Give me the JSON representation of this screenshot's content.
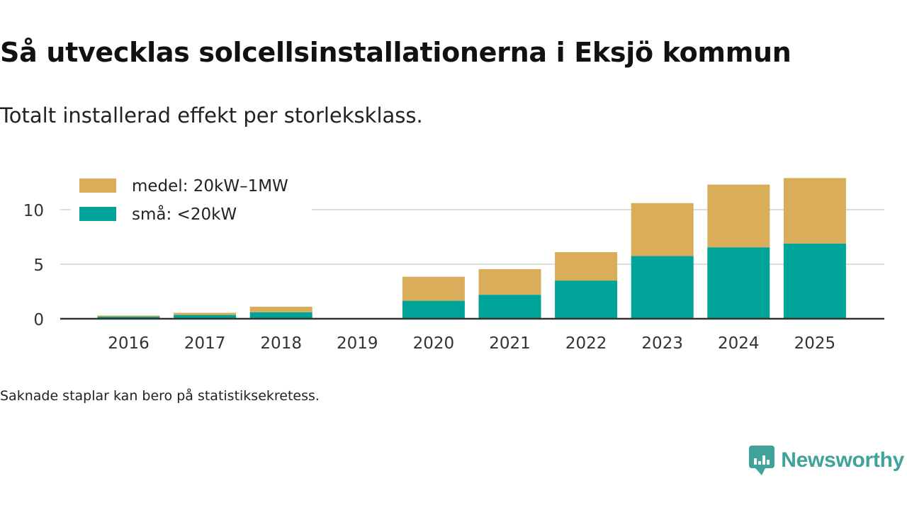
{
  "title": "Så utvecklas solcellsinstallationerna i Eksjö kommun",
  "subtitle": "Totalt installerad effekt per storleksklass.",
  "footnote": "Saknade staplar kan bero på statistiksekretess.",
  "brand": {
    "name": "Newsworthy",
    "icon": "newsworthy-logo-icon",
    "color": "#3fa39a"
  },
  "chart_data": {
    "type": "bar",
    "stacked": true,
    "categories": [
      "2016",
      "2017",
      "2018",
      "2019",
      "2020",
      "2021",
      "2022",
      "2023",
      "2024",
      "2025"
    ],
    "series": [
      {
        "name": "små: <20kW",
        "color": "#00a398",
        "values": [
          0.2,
          0.35,
          0.6,
          null,
          1.65,
          2.2,
          3.5,
          5.75,
          6.55,
          6.9
        ]
      },
      {
        "name": "medel: 20kW–1MW",
        "color": "#d9ad5a",
        "values": [
          0.1,
          0.2,
          0.5,
          null,
          2.2,
          2.35,
          2.6,
          4.85,
          5.75,
          6.0
        ]
      }
    ],
    "legend_order": [
      "medel: 20kW–1MW",
      "små: <20kW"
    ],
    "legend_position": "top-left",
    "yticks": [
      0,
      5,
      10
    ],
    "ylim": [
      0,
      13
    ],
    "xlabel": "",
    "ylabel": "",
    "grid": true
  }
}
